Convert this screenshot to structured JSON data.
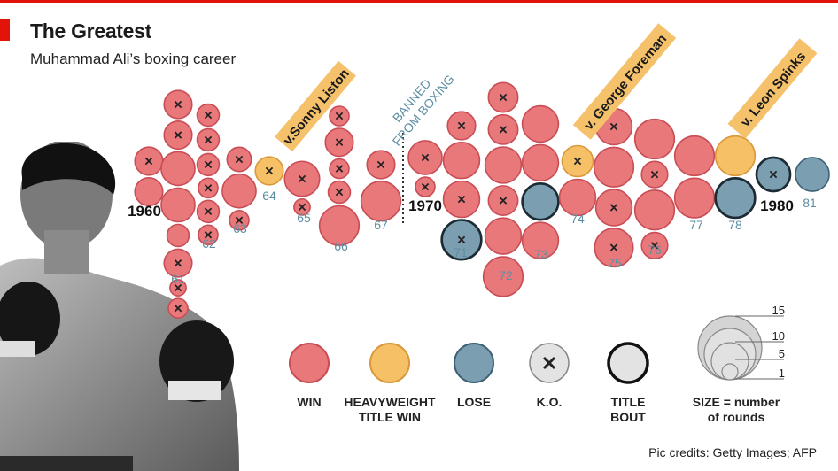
{
  "header": {
    "title": "The Greatest",
    "subtitle": "Muhammad Ali’s boxing career"
  },
  "credits": "Pic credits: Getty Images; AFP",
  "colors": {
    "win": "#e9787b",
    "win_edge": "#c94d55",
    "title_win": "#f6c067",
    "title_win_edge": "#d9983a",
    "lose": "#7b9fb0",
    "lose_edge": "#3e6273",
    "ko_fill": "#e3e3e3",
    "accent_red": "#e3120b",
    "label_blue": "#5e8ea3",
    "banner_yellow": "#f5c26b"
  },
  "chart_data": {
    "type": "scatter",
    "description_axis": "year",
    "banned_label": [
      "BANNED",
      "FROM BOXING"
    ],
    "callouts": [
      {
        "text": "v.Sonny Liston",
        "year": 1964
      },
      {
        "text": "v. George Foreman",
        "year": 1974
      },
      {
        "text": "v. Leon Spinks",
        "year": 1978
      }
    ],
    "year_labels": [
      {
        "year": 1960,
        "label": "1960",
        "style": "decade"
      },
      {
        "year": 1961,
        "label": "61",
        "style": "short"
      },
      {
        "year": 1962,
        "label": "62",
        "style": "short"
      },
      {
        "year": 1963,
        "label": "63",
        "style": "short"
      },
      {
        "year": 1964,
        "label": "64",
        "style": "short"
      },
      {
        "year": 1965,
        "label": "65",
        "style": "short"
      },
      {
        "year": 1966,
        "label": "66",
        "style": "short"
      },
      {
        "year": 1967,
        "label": "67",
        "style": "short"
      },
      {
        "year": 1970,
        "label": "1970",
        "style": "decade"
      },
      {
        "year": 1971,
        "label": "71",
        "style": "short"
      },
      {
        "year": 1972,
        "label": "72",
        "style": "short"
      },
      {
        "year": 1973,
        "label": "73",
        "style": "short"
      },
      {
        "year": 1974,
        "label": "74",
        "style": "short"
      },
      {
        "year": 1975,
        "label": "75",
        "style": "short"
      },
      {
        "year": 1976,
        "label": "76",
        "style": "short"
      },
      {
        "year": 1977,
        "label": "77",
        "style": "short"
      },
      {
        "year": 1978,
        "label": "78",
        "style": "short"
      },
      {
        "year": 1980,
        "label": "1980",
        "style": "decade"
      },
      {
        "year": 1981,
        "label": "81",
        "style": "short"
      }
    ],
    "fights": [
      {
        "year": 1960,
        "result": "win",
        "ko": true,
        "title_bout": false,
        "rounds": 6
      },
      {
        "year": 1960,
        "result": "win",
        "ko": false,
        "title_bout": false,
        "rounds": 6
      },
      {
        "year": 1961,
        "result": "win",
        "ko": true,
        "title_bout": false,
        "rounds": 6
      },
      {
        "year": 1961,
        "result": "win",
        "ko": true,
        "title_bout": false,
        "rounds": 6
      },
      {
        "year": 1961,
        "result": "win",
        "ko": false,
        "title_bout": false,
        "rounds": 10
      },
      {
        "year": 1961,
        "result": "win",
        "ko": false,
        "title_bout": false,
        "rounds": 10
      },
      {
        "year": 1961,
        "result": "win",
        "ko": false,
        "title_bout": false,
        "rounds": 3
      },
      {
        "year": 1961,
        "result": "win",
        "ko": true,
        "title_bout": false,
        "rounds": 6
      },
      {
        "year": 1961,
        "result": "win",
        "ko": true,
        "title_bout": false,
        "rounds": 1
      },
      {
        "year": 1961,
        "result": "win",
        "ko": true,
        "title_bout": false,
        "rounds": 2
      },
      {
        "year": 1962,
        "result": "win",
        "ko": true,
        "title_bout": false,
        "rounds": 3
      },
      {
        "year": 1962,
        "result": "win",
        "ko": true,
        "title_bout": false,
        "rounds": 3
      },
      {
        "year": 1962,
        "result": "win",
        "ko": true,
        "title_bout": false,
        "rounds": 3
      },
      {
        "year": 1962,
        "result": "win",
        "ko": true,
        "title_bout": false,
        "rounds": 2
      },
      {
        "year": 1962,
        "result": "win",
        "ko": true,
        "title_bout": false,
        "rounds": 3
      },
      {
        "year": 1962,
        "result": "win",
        "ko": true,
        "title_bout": false,
        "rounds": 2
      },
      {
        "year": 1963,
        "result": "win",
        "ko": true,
        "title_bout": false,
        "rounds": 4
      },
      {
        "year": 1963,
        "result": "win",
        "ko": false,
        "title_bout": false,
        "rounds": 10
      },
      {
        "year": 1963,
        "result": "win",
        "ko": true,
        "title_bout": false,
        "rounds": 2
      },
      {
        "year": 1964,
        "result": "title_win",
        "ko": true,
        "title_bout": false,
        "rounds": 6
      },
      {
        "year": 1965,
        "result": "win",
        "ko": true,
        "title_bout": false,
        "rounds": 11
      },
      {
        "year": 1965,
        "result": "win",
        "ko": true,
        "title_bout": false,
        "rounds": 1
      },
      {
        "year": 1966,
        "result": "win",
        "ko": true,
        "title_bout": false,
        "rounds": 2
      },
      {
        "year": 1966,
        "result": "win",
        "ko": true,
        "title_bout": false,
        "rounds": 6
      },
      {
        "year": 1966,
        "result": "win",
        "ko": true,
        "title_bout": false,
        "rounds": 2
      },
      {
        "year": 1966,
        "result": "win",
        "ko": true,
        "title_bout": false,
        "rounds": 3
      },
      {
        "year": 1966,
        "result": "win",
        "ko": false,
        "title_bout": false,
        "rounds": 15
      },
      {
        "year": 1967,
        "result": "win",
        "ko": true,
        "title_bout": false,
        "rounds": 6
      },
      {
        "year": 1967,
        "result": "win",
        "ko": false,
        "title_bout": false,
        "rounds": 15
      },
      {
        "year": 1970,
        "result": "win",
        "ko": true,
        "title_bout": false,
        "rounds": 10
      },
      {
        "year": 1970,
        "result": "win",
        "ko": true,
        "title_bout": false,
        "rounds": 2
      },
      {
        "year": 1971,
        "result": "win",
        "ko": true,
        "title_bout": false,
        "rounds": 6
      },
      {
        "year": 1971,
        "result": "win",
        "ko": false,
        "title_bout": false,
        "rounds": 12
      },
      {
        "year": 1971,
        "result": "win",
        "ko": true,
        "title_bout": false,
        "rounds": 12
      },
      {
        "year": 1971,
        "result": "lose",
        "ko": true,
        "title_bout": true,
        "rounds": 15
      },
      {
        "year": 1972,
        "result": "win",
        "ko": true,
        "title_bout": false,
        "rounds": 7
      },
      {
        "year": 1972,
        "result": "win",
        "ko": true,
        "title_bout": false,
        "rounds": 7
      },
      {
        "year": 1972,
        "result": "win",
        "ko": false,
        "title_bout": false,
        "rounds": 12
      },
      {
        "year": 1972,
        "result": "win",
        "ko": true,
        "title_bout": false,
        "rounds": 7
      },
      {
        "year": 1972,
        "result": "win",
        "ko": false,
        "title_bout": false,
        "rounds": 12
      },
      {
        "year": 1972,
        "result": "win",
        "ko": false,
        "title_bout": false,
        "rounds": 15
      },
      {
        "year": 1973,
        "result": "win",
        "ko": false,
        "title_bout": false,
        "rounds": 12
      },
      {
        "year": 1973,
        "result": "win",
        "ko": false,
        "title_bout": false,
        "rounds": 12
      },
      {
        "year": 1973,
        "result": "lose",
        "ko": false,
        "title_bout": true,
        "rounds": 12
      },
      {
        "year": 1973,
        "result": "win",
        "ko": false,
        "title_bout": false,
        "rounds": 12
      },
      {
        "year": 1974,
        "result": "title_win",
        "ko": true,
        "title_bout": false,
        "rounds": 8
      },
      {
        "year": 1974,
        "result": "win",
        "ko": false,
        "title_bout": false,
        "rounds": 12
      },
      {
        "year": 1975,
        "result": "win",
        "ko": true,
        "title_bout": false,
        "rounds": 12
      },
      {
        "year": 1975,
        "result": "win",
        "ko": false,
        "title_bout": false,
        "rounds": 15
      },
      {
        "year": 1975,
        "result": "win",
        "ko": true,
        "title_bout": false,
        "rounds": 12
      },
      {
        "year": 1975,
        "result": "win",
        "ko": true,
        "title_bout": false,
        "rounds": 14
      },
      {
        "year": 1976,
        "result": "win",
        "ko": false,
        "title_bout": false,
        "rounds": 15
      },
      {
        "year": 1976,
        "result": "win",
        "ko": true,
        "title_bout": false,
        "rounds": 5
      },
      {
        "year": 1976,
        "result": "win",
        "ko": false,
        "title_bout": false,
        "rounds": 15
      },
      {
        "year": 1976,
        "result": "win",
        "ko": true,
        "title_bout": false,
        "rounds": 5
      },
      {
        "year": 1977,
        "result": "win",
        "ko": false,
        "title_bout": false,
        "rounds": 15
      },
      {
        "year": 1977,
        "result": "win",
        "ko": false,
        "title_bout": false,
        "rounds": 15
      },
      {
        "year": 1978,
        "result": "title_win",
        "ko": false,
        "title_bout": false,
        "rounds": 15
      },
      {
        "year": 1978,
        "result": "lose",
        "ko": false,
        "title_bout": true,
        "rounds": 15
      },
      {
        "year": 1980,
        "result": "lose",
        "ko": true,
        "title_bout": true,
        "rounds": 10
      },
      {
        "year": 1981,
        "result": "lose",
        "ko": false,
        "title_bout": false,
        "rounds": 10
      }
    ]
  },
  "legend": {
    "items": [
      {
        "key": "win",
        "label": "WIN"
      },
      {
        "key": "title_win",
        "label": "HEAVYWEIGHT\nTITLE WIN"
      },
      {
        "key": "lose",
        "label": "LOSE"
      },
      {
        "key": "ko",
        "label": "K.O."
      },
      {
        "key": "title_bout",
        "label": "TITLE\nBOUT"
      }
    ],
    "size_label": "SIZE = number\nof rounds",
    "size_values": [
      "15",
      "10",
      "5",
      "1"
    ]
  }
}
